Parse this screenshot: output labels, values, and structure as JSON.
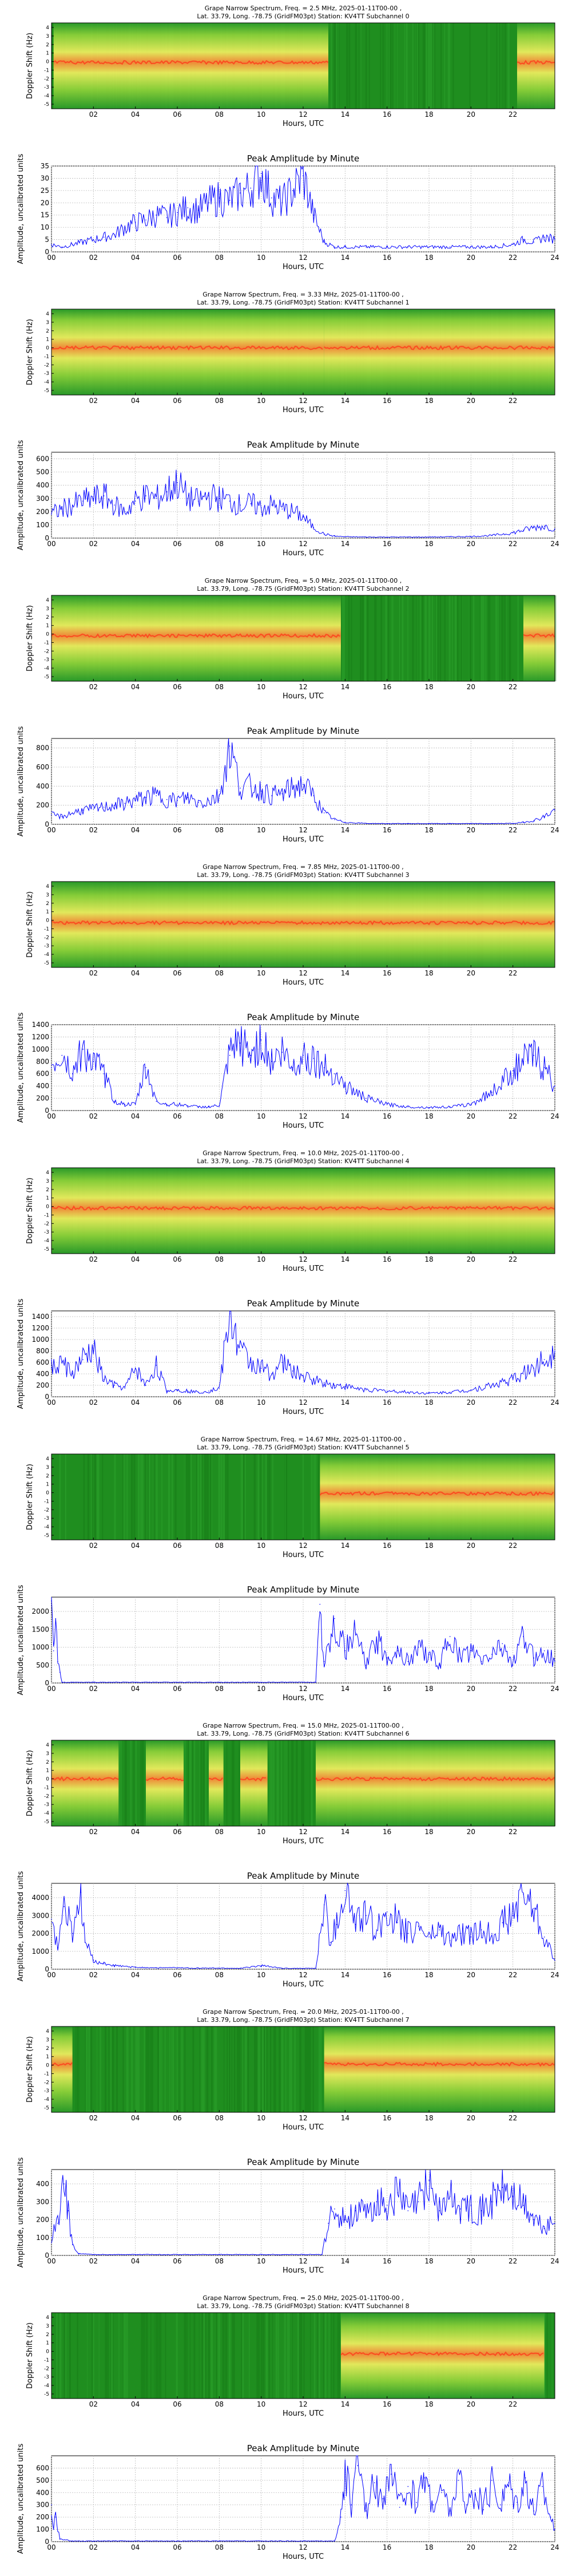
{
  "figure": {
    "x_ticks": [
      "02",
      "04",
      "06",
      "08",
      "10",
      "12",
      "14",
      "16",
      "18",
      "20",
      "22"
    ],
    "x_ticks_line": [
      "00",
      "02",
      "04",
      "06",
      "08",
      "10",
      "12",
      "14",
      "16",
      "18",
      "20",
      "22",
      "24"
    ],
    "xlabel": "Hours, UTC",
    "spectrogram_ylabel": "Doppler Shift (Hz)",
    "spectrogram_yticks": [
      "4",
      "3",
      "2",
      "1",
      "0",
      "-1",
      "-2",
      "-3",
      "-4",
      "-5"
    ],
    "line_title": "Peak Amplitude by Minute",
    "line_ylabel": "Amplitude, uncalibrated units",
    "colors": {
      "line": "#0000ff",
      "bg_green": "#1e8c1e",
      "signal_yellow": "#f0f060",
      "signal_red": "#ff5030"
    }
  },
  "chart_data": [
    {
      "type": "heatmap",
      "title_line1": "Grape Narrow Spectrum, Freq. = 2.5 MHz, 2025-01-11T00-00 ,",
      "title_line2": "Lat.  33.79, Long. -78.75 (GridFM03pt) Station: KV4TT Subchannel 0",
      "xlabel": "Hours, UTC",
      "ylabel": "Doppler Shift (Hz)",
      "xlim": [
        0,
        24
      ],
      "ylim": [
        -5,
        5
      ],
      "signal_windows": [
        [
          0.1,
          13.2
        ],
        [
          22.2,
          24
        ]
      ],
      "carrier_doppler_hz": 0.4
    },
    {
      "type": "line",
      "title": "Peak Amplitude by Minute",
      "xlabel": "Hours, UTC",
      "ylabel": "Amplitude, uncalibrated units",
      "xlim": [
        0,
        24
      ],
      "ylim": [
        0,
        35
      ],
      "yticks": [
        0,
        5,
        10,
        15,
        20,
        25,
        30,
        35
      ],
      "grid": true,
      "x": [
        0,
        0.5,
        1,
        1.5,
        2,
        2.5,
        3,
        3.5,
        4,
        4.5,
        5,
        5.5,
        6,
        6.5,
        7,
        7.5,
        8,
        8.5,
        9,
        9.5,
        10,
        10.5,
        11,
        11.5,
        12,
        12.5,
        13,
        13.5,
        14,
        15,
        16,
        17,
        18,
        19,
        20,
        21,
        22,
        22.5,
        23,
        23.5,
        24
      ],
      "y": [
        3,
        2,
        3,
        4,
        5,
        6,
        7,
        10,
        12,
        13,
        15,
        14,
        16,
        18,
        17,
        20,
        22,
        21,
        24,
        26,
        32,
        22,
        20,
        25,
        31,
        15,
        4,
        2,
        2,
        2,
        2,
        2,
        2,
        2,
        2,
        2,
        3,
        5,
        4,
        6,
        5
      ]
    },
    {
      "type": "heatmap",
      "title_line1": "Grape Narrow Spectrum, Freq. = 3.33 MHz, 2025-01-11T00-00 ,",
      "title_line2": "Lat.  33.79, Long. -78.75 (GridFM03pt) Station: KV4TT Subchannel 1",
      "xlabel": "Hours, UTC",
      "ylabel": "Doppler Shift (Hz)",
      "xlim": [
        0,
        24
      ],
      "ylim": [
        -5,
        5
      ],
      "signal_windows": [
        [
          0,
          13
        ],
        [
          13,
          24
        ]
      ],
      "carrier_doppler_hz": 0.5
    },
    {
      "type": "line",
      "title": "Peak Amplitude by Minute",
      "xlabel": "Hours, UTC",
      "ylabel": "Amplitude, uncalibrated units",
      "xlim": [
        0,
        24
      ],
      "ylim": [
        0,
        650
      ],
      "yticks": [
        0,
        100,
        200,
        300,
        400,
        500,
        600
      ],
      "grid": true,
      "x": [
        0,
        0.5,
        1,
        1.5,
        2,
        2.5,
        3,
        3.5,
        4,
        4.5,
        5,
        5.5,
        6,
        6.5,
        7,
        7.5,
        8,
        8.5,
        9,
        9.5,
        10,
        10.5,
        11,
        11.5,
        12,
        12.5,
        13,
        13.5,
        14,
        15,
        16,
        17,
        18,
        19,
        20,
        21,
        22,
        22.5,
        23,
        23.5,
        24
      ],
      "y": [
        180,
        220,
        250,
        280,
        300,
        320,
        250,
        200,
        280,
        320,
        300,
        350,
        420,
        300,
        280,
        320,
        300,
        280,
        250,
        260,
        230,
        250,
        220,
        200,
        160,
        80,
        30,
        15,
        10,
        8,
        8,
        8,
        8,
        10,
        12,
        20,
        40,
        60,
        80,
        90,
        70
      ]
    },
    {
      "type": "heatmap",
      "title_line1": "Grape Narrow Spectrum, Freq. = 5.0 MHz, 2025-01-11T00-00 ,",
      "title_line2": "Lat.  33.79, Long. -78.75 (GridFM03pt) Station: KV4TT Subchannel 2",
      "xlabel": "Hours, UTC",
      "ylabel": "Doppler Shift (Hz)",
      "xlim": [
        0,
        24
      ],
      "ylim": [
        -5,
        5
      ],
      "signal_windows": [
        [
          0,
          13.8
        ],
        [
          22.5,
          24
        ]
      ],
      "carrier_doppler_hz": 0.3
    },
    {
      "type": "line",
      "title": "Peak Amplitude by Minute",
      "xlabel": "Hours, UTC",
      "ylabel": "Amplitude, uncalibrated units",
      "xlim": [
        0,
        24
      ],
      "ylim": [
        0,
        900
      ],
      "yticks": [
        0,
        200,
        400,
        600,
        800
      ],
      "grid": true,
      "x": [
        0,
        0.5,
        1,
        1.5,
        2,
        2.5,
        3,
        3.5,
        4,
        4.5,
        5,
        5.5,
        6,
        6.5,
        7,
        7.5,
        8,
        8.5,
        9,
        9.5,
        10,
        10.5,
        11,
        11.5,
        12,
        12.5,
        13,
        13.5,
        14,
        15,
        16,
        17,
        18,
        19,
        20,
        21,
        22,
        22.5,
        23,
        23.5,
        24
      ],
      "y": [
        100,
        80,
        120,
        150,
        160,
        180,
        200,
        220,
        250,
        280,
        300,
        260,
        250,
        280,
        230,
        250,
        300,
        820,
        380,
        400,
        350,
        300,
        320,
        380,
        420,
        300,
        120,
        50,
        20,
        10,
        8,
        8,
        8,
        8,
        8,
        8,
        10,
        20,
        40,
        80,
        150
      ]
    },
    {
      "type": "heatmap",
      "title_line1": "Grape Narrow Spectrum, Freq. = 7.85 MHz, 2025-01-11T00-00 ,",
      "title_line2": "Lat.  33.79, Long. -78.75 (GridFM03pt) Station: KV4TT Subchannel 3",
      "xlabel": "Hours, UTC",
      "ylabel": "Doppler Shift (Hz)",
      "xlim": [
        0,
        24
      ],
      "ylim": [
        -5,
        5
      ],
      "signal_windows": [
        [
          0,
          24
        ]
      ],
      "carrier_doppler_hz": 0.2
    },
    {
      "type": "line",
      "title": "Peak Amplitude by Minute",
      "xlabel": "Hours, UTC",
      "ylabel": "Amplitude, uncalibrated units",
      "xlim": [
        0,
        24
      ],
      "ylim": [
        0,
        1400
      ],
      "yticks": [
        0,
        200,
        400,
        600,
        800,
        1000,
        1200,
        1400
      ],
      "grid": true,
      "x": [
        0,
        0.5,
        1,
        1.5,
        2,
        2.5,
        3,
        3.5,
        4,
        4.5,
        5,
        5.5,
        6,
        6.5,
        7,
        7.5,
        8,
        8.5,
        9,
        9.5,
        10,
        10.5,
        11,
        11.5,
        12,
        12.5,
        13,
        13.5,
        14,
        15,
        16,
        17,
        18,
        19,
        20,
        21,
        22,
        22.5,
        23,
        23.5,
        24
      ],
      "y": [
        700,
        900,
        600,
        1000,
        800,
        600,
        150,
        100,
        100,
        700,
        150,
        100,
        100,
        80,
        60,
        60,
        80,
        900,
        1100,
        900,
        1150,
        800,
        950,
        700,
        900,
        850,
        700,
        600,
        400,
        200,
        100,
        60,
        50,
        60,
        100,
        300,
        650,
        800,
        900,
        700,
        400
      ]
    },
    {
      "type": "heatmap",
      "title_line1": "Grape Narrow Spectrum, Freq. = 10.0 MHz, 2025-01-11T00-00 ,",
      "title_line2": "Lat.  33.79, Long. -78.75 (GridFM03pt) Station: KV4TT Subchannel 4",
      "xlabel": "Hours, UTC",
      "ylabel": "Doppler Shift (Hz)",
      "xlim": [
        0,
        24
      ],
      "ylim": [
        -5,
        5
      ],
      "signal_windows": [
        [
          0,
          24
        ]
      ],
      "carrier_doppler_hz": 0.3
    },
    {
      "type": "line",
      "title": "Peak Amplitude by Minute",
      "xlabel": "Hours, UTC",
      "ylabel": "Amplitude, uncalibrated units",
      "xlim": [
        0,
        24
      ],
      "ylim": [
        0,
        1500
      ],
      "yticks": [
        0,
        200,
        400,
        600,
        800,
        1000,
        1200,
        1400
      ],
      "grid": true,
      "x": [
        0,
        0.5,
        1,
        1.5,
        2,
        2.5,
        3,
        3.5,
        4,
        4.5,
        5,
        5.5,
        6,
        6.5,
        7,
        7.5,
        8,
        8.5,
        9,
        9.5,
        10,
        10.5,
        11,
        11.5,
        12,
        12.5,
        13,
        13.5,
        14,
        15,
        16,
        17,
        18,
        19,
        20,
        21,
        22,
        22.5,
        23,
        23.5,
        24
      ],
      "y": [
        500,
        600,
        400,
        650,
        800,
        300,
        200,
        150,
        500,
        200,
        550,
        100,
        120,
        100,
        80,
        100,
        150,
        1450,
        800,
        600,
        500,
        400,
        600,
        450,
        350,
        300,
        250,
        200,
        180,
        120,
        100,
        80,
        60,
        80,
        120,
        200,
        300,
        400,
        500,
        650,
        800
      ]
    },
    {
      "type": "heatmap",
      "title_line1": "Grape Narrow Spectrum, Freq. = 14.67 MHz, 2025-01-11T00-00 ,",
      "title_line2": "Lat.  33.79, Long. -78.75 (GridFM03pt) Station: KV4TT Subchannel 5",
      "xlabel": "Hours, UTC",
      "ylabel": "Doppler Shift (Hz)",
      "xlim": [
        0,
        24
      ],
      "ylim": [
        -5,
        5
      ],
      "signal_windows": [
        [
          12.8,
          24
        ]
      ],
      "carrier_doppler_hz": 0.4
    },
    {
      "type": "line",
      "title": "Peak Amplitude by Minute",
      "xlabel": "Hours, UTC",
      "ylabel": "Amplitude, uncalibrated units",
      "xlim": [
        0,
        24
      ],
      "ylim": [
        0,
        2400
      ],
      "yticks": [
        0,
        500,
        1000,
        1500,
        2000
      ],
      "grid": true,
      "x": [
        0,
        0.1,
        0.2,
        0.3,
        0.4,
        0.5,
        1,
        2,
        4,
        6,
        8,
        10,
        12,
        12.6,
        12.8,
        13,
        13.5,
        14,
        14.5,
        15,
        15.5,
        16,
        16.5,
        17,
        17.5,
        18,
        18.5,
        19,
        19.5,
        20,
        20.5,
        21,
        21.5,
        22,
        22.5,
        23,
        23.5,
        24
      ],
      "y": [
        2300,
        900,
        1800,
        600,
        300,
        20,
        20,
        20,
        20,
        20,
        20,
        20,
        20,
        20,
        2200,
        600,
        1800,
        900,
        1400,
        500,
        1200,
        700,
        900,
        600,
        1000,
        800,
        500,
        1300,
        700,
        900,
        600,
        800,
        1100,
        500,
        1300,
        700,
        900,
        600
      ]
    },
    {
      "type": "heatmap",
      "title_line1": "Grape Narrow Spectrum, Freq. = 15.0 MHz, 2025-01-11T00-00 ,",
      "title_line2": "Lat.  33.79, Long. -78.75 (GridFM03pt) Station: KV4TT Subchannel 6",
      "xlabel": "Hours, UTC",
      "ylabel": "Doppler Shift (Hz)",
      "xlim": [
        0,
        24
      ],
      "ylim": [
        -5,
        5
      ],
      "signal_windows": [
        [
          0,
          3.2
        ],
        [
          4.5,
          6.3
        ],
        [
          7.5,
          8.2
        ],
        [
          9,
          10.3
        ],
        [
          12.6,
          24
        ]
      ],
      "carrier_doppler_hz": 0.5
    },
    {
      "type": "line",
      "title": "Peak Amplitude by Minute",
      "xlabel": "Hours, UTC",
      "ylabel": "Amplitude, uncalibrated units",
      "xlim": [
        0,
        24
      ],
      "ylim": [
        0,
        4800
      ],
      "yticks": [
        0,
        1000,
        2000,
        3000,
        4000
      ],
      "grid": true,
      "x": [
        0,
        0.3,
        0.6,
        1,
        1.4,
        1.6,
        2,
        2.5,
        3,
        4,
        5,
        6,
        7,
        8,
        9,
        10,
        11,
        12,
        12.6,
        13,
        13.3,
        13.6,
        14,
        14.5,
        15,
        15.5,
        16,
        16.5,
        17,
        17.5,
        18,
        18.5,
        19,
        19.5,
        20,
        20.5,
        21,
        21.5,
        22,
        22.5,
        23,
        23.5,
        24
      ],
      "y": [
        2800,
        1200,
        3500,
        2000,
        4300,
        1500,
        500,
        300,
        200,
        100,
        80,
        80,
        60,
        60,
        50,
        200,
        50,
        50,
        50,
        3600,
        1500,
        2500,
        4400,
        2500,
        3000,
        2200,
        3200,
        2600,
        2000,
        2400,
        1800,
        2200,
        1600,
        2000,
        1800,
        2200,
        2000,
        2600,
        3000,
        4200,
        3400,
        1800,
        500
      ]
    },
    {
      "type": "heatmap",
      "title_line1": "Grape Narrow Spectrum, Freq. = 20.0 MHz, 2025-01-11T00-00 ,",
      "title_line2": "Lat.  33.79, Long. -78.75 (GridFM03pt) Station: KV4TT Subchannel 7",
      "xlabel": "Hours, UTC",
      "ylabel": "Doppler Shift (Hz)",
      "xlim": [
        0,
        24
      ],
      "ylim": [
        -5,
        5
      ],
      "signal_windows": [
        [
          0,
          1
        ],
        [
          13,
          24
        ]
      ],
      "carrier_doppler_hz": 0.6
    },
    {
      "type": "line",
      "title": "Peak Amplitude by Minute",
      "xlabel": "Hours, UTC",
      "ylabel": "Amplitude, uncalibrated units",
      "xlim": [
        0,
        24
      ],
      "ylim": [
        0,
        480
      ],
      "yticks": [
        0,
        100,
        200,
        300,
        400
      ],
      "grid": true,
      "x": [
        0,
        0.3,
        0.6,
        0.8,
        1,
        1.3,
        2,
        4,
        6,
        8,
        10,
        12,
        12.9,
        13.2,
        13.5,
        14,
        14.5,
        15,
        15.5,
        16,
        16.5,
        17,
        17.5,
        18,
        18.5,
        19,
        19.5,
        20,
        20.5,
        21,
        21.5,
        22,
        22.5,
        23,
        23.5,
        24
      ],
      "y": [
        100,
        180,
        400,
        250,
        60,
        10,
        5,
        5,
        5,
        5,
        5,
        5,
        5,
        180,
        260,
        200,
        250,
        220,
        300,
        280,
        350,
        250,
        300,
        420,
        250,
        330,
        260,
        280,
        250,
        300,
        380,
        330,
        280,
        200,
        150,
        180
      ]
    },
    {
      "type": "heatmap",
      "title_line1": "Grape Narrow Spectrum, Freq. = 25.0 MHz, 2025-01-11T00-00 ,",
      "title_line2": "Lat.  33.79, Long. -78.75 (GridFM03pt) Station: KV4TT Subchannel 8",
      "xlabel": "Hours, UTC",
      "ylabel": "Doppler Shift (Hz)",
      "xlim": [
        0,
        24
      ],
      "ylim": [
        -5,
        5
      ],
      "signal_windows": [
        [
          13.8,
          23.5
        ]
      ],
      "carrier_doppler_hz": 0.2
    },
    {
      "type": "line",
      "title": "Peak Amplitude by Minute",
      "xlabel": "Hours, UTC",
      "ylabel": "Amplitude, uncalibrated units",
      "xlim": [
        0,
        24
      ],
      "ylim": [
        0,
        700
      ],
      "yticks": [
        0,
        100,
        200,
        300,
        400,
        500,
        600
      ],
      "grid": true,
      "x": [
        0,
        0.1,
        0.2,
        0.4,
        1,
        2,
        4,
        6,
        8,
        10,
        12,
        13.5,
        13.8,
        14,
        14.3,
        14.6,
        15,
        15.4,
        15.8,
        16.2,
        16.6,
        17,
        17.4,
        17.8,
        18.2,
        18.6,
        19,
        19.4,
        19.8,
        20.2,
        20.6,
        21,
        21.4,
        21.8,
        22.2,
        22.6,
        23,
        23.4,
        23.8,
        24
      ],
      "y": [
        300,
        100,
        200,
        20,
        5,
        5,
        5,
        5,
        5,
        5,
        5,
        5,
        200,
        600,
        300,
        620,
        250,
        480,
        350,
        550,
        280,
        450,
        320,
        520,
        300,
        400,
        250,
        500,
        300,
        420,
        260,
        500,
        300,
        480,
        320,
        520,
        250,
        450,
        200,
        100
      ]
    }
  ]
}
